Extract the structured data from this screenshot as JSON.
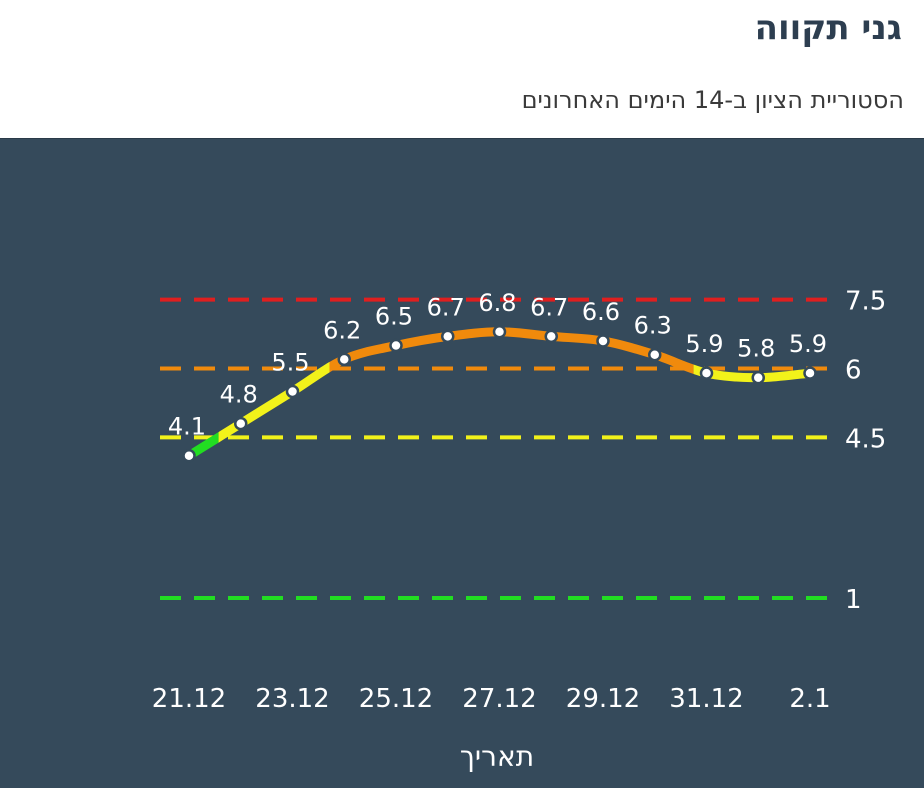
{
  "header": {
    "title": "גני תקווה",
    "subtitle": "הסטוריית הציון ב-14 הימים האחרונים"
  },
  "colors": {
    "background": "#354a5b",
    "green": "#22dd22",
    "yellow": "#f2f21a",
    "orange": "#f08a0c",
    "red": "#e01f1f"
  },
  "chart_data": {
    "type": "line",
    "title": "",
    "xlabel": "תאריך",
    "ylabel": "",
    "x": [
      "21.12",
      "22.12",
      "23.12",
      "24.12",
      "25.12",
      "26.12",
      "27.12",
      "28.12",
      "29.12",
      "30.12",
      "31.12",
      "1.1",
      "2.1"
    ],
    "x_tick_labels": [
      "21.12",
      "23.12",
      "25.12",
      "27.12",
      "29.12",
      "31.12",
      "2.1"
    ],
    "values": [
      4.1,
      4.8,
      5.5,
      6.2,
      6.5,
      6.7,
      6.8,
      6.7,
      6.6,
      6.3,
      5.9,
      5.8,
      5.9
    ],
    "data_labels": [
      "4.1",
      "4.8",
      "5.5",
      "6.2",
      "6.5",
      "6.7",
      "6.8",
      "6.7",
      "6.6",
      "6.3",
      "5.9",
      "5.8",
      "5.9"
    ],
    "thresholds": [
      {
        "value": 7.5,
        "label": "7.5",
        "color": "#e01f1f"
      },
      {
        "value": 6,
        "label": "6",
        "color": "#f08a0c"
      },
      {
        "value": 4.5,
        "label": "4.5",
        "color": "#f2f21a"
      },
      {
        "value": 1,
        "label": "1",
        "color": "#22dd22"
      }
    ],
    "line_color_bands": [
      {
        "min": 0,
        "max": 4.5,
        "color": "#22dd22"
      },
      {
        "min": 4.5,
        "max": 6,
        "color": "#f2f21a"
      },
      {
        "min": 6,
        "max": 7.5,
        "color": "#f08a0c"
      },
      {
        "min": 7.5,
        "max": 100,
        "color": "#e01f1f"
      }
    ],
    "grid": false
  }
}
